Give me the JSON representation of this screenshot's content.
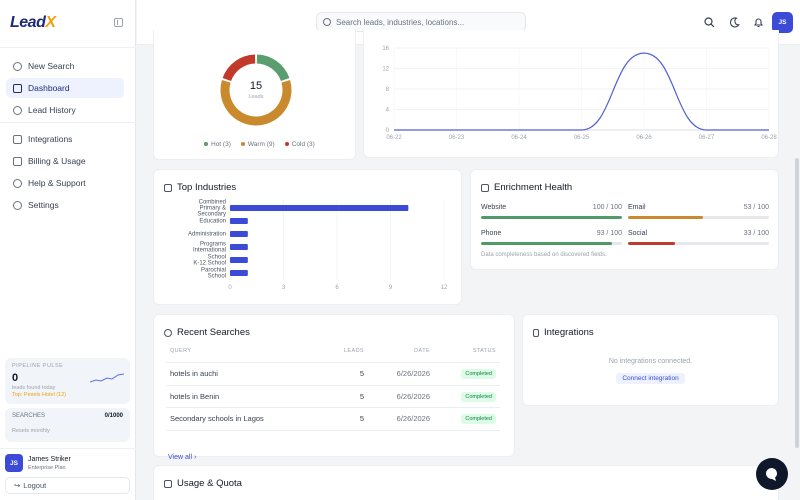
{
  "app": {
    "logo_text": "Lead",
    "logo_x": "X"
  },
  "sidebar": {
    "items": [
      {
        "label": "New Search",
        "icon": "search-icon"
      },
      {
        "label": "Dashboard",
        "icon": "grid-icon",
        "active": true
      },
      {
        "label": "Lead History",
        "icon": "history-icon"
      },
      {
        "label": "Integrations",
        "icon": "link-icon"
      },
      {
        "label": "Billing & Usage",
        "icon": "card-icon"
      },
      {
        "label": "Help & Support",
        "icon": "help-icon"
      },
      {
        "label": "Settings",
        "icon": "gear-icon"
      }
    ],
    "pulse": {
      "title": "PIPELINE PULSE",
      "value": "0",
      "sub": "leads found today",
      "top": "Top: Pexels Hotel (12)"
    },
    "searches": {
      "label": "SEARCHES",
      "value": "0/1000",
      "sub": "Resets monthly"
    },
    "user": {
      "initials": "JS",
      "name": "James Striker",
      "plan": "Enterprise Plan"
    },
    "logout_label": "Logout"
  },
  "header": {
    "search_placeholder": "Search leads, industries, locations...",
    "avatar_initials": "JS"
  },
  "donut": {
    "center_value": "15",
    "center_label": "Leads",
    "segments": [
      {
        "label": "Hot",
        "count": 3,
        "legend": "Hot (3)",
        "color": "#5a9e6f"
      },
      {
        "label": "Warm",
        "count": 9,
        "legend": "Warm (9)",
        "color": "#c98a2e"
      },
      {
        "label": "Cold",
        "count": 3,
        "legend": "Cold (3)",
        "color": "#c0392b"
      }
    ]
  },
  "line_chart": {
    "type": "line",
    "x": [
      "06-22",
      "06-23",
      "06-24",
      "06-25",
      "06-26",
      "06-27",
      "06-28"
    ],
    "y_ticks": [
      "16",
      "12",
      "8",
      "4",
      "0"
    ],
    "ylim": [
      0,
      16
    ],
    "values": [
      0,
      0,
      0,
      0,
      15,
      0,
      0
    ],
    "color": "#4f5fd6"
  },
  "top_industries": {
    "title": "Top Industries",
    "chart_data": {
      "type": "bar",
      "orientation": "horizontal",
      "categories": [
        [
          "Combined",
          "Primary &",
          "Secondary"
        ],
        [
          "Education"
        ],
        [
          "Administration"
        ],
        [
          "Programs",
          "International"
        ],
        [
          "School",
          "K-12 School"
        ],
        [
          "Parochial",
          "School"
        ]
      ],
      "values": [
        10,
        1,
        1,
        1,
        1,
        1
      ],
      "x_ticks": [
        "0",
        "3",
        "6",
        "9",
        "12"
      ],
      "xlim": [
        0,
        12
      ],
      "color": "#3b4bd8"
    }
  },
  "enrichment": {
    "title": "Enrichment Health",
    "rows": [
      {
        "label": "Website",
        "value": "100 / 100",
        "pct": 100,
        "color": "#4e9a68"
      },
      {
        "label": "Email",
        "value": "53 / 100",
        "pct": 53,
        "color": "#c98a2e"
      },
      {
        "label": "Phone",
        "value": "93 / 100",
        "pct": 93,
        "color": "#4e9a68"
      },
      {
        "label": "Social",
        "value": "33 / 100",
        "pct": 33,
        "color": "#c0392b"
      }
    ],
    "note": "Data completeness based on discovered fields."
  },
  "recent": {
    "title": "Recent Searches",
    "headers": [
      "QUERY",
      "LEADS",
      "DATE",
      "STATUS"
    ],
    "rows": [
      {
        "query": "hotels in auchi",
        "leads": "5",
        "date": "6/26/2026",
        "status": "Completed"
      },
      {
        "query": "hotels in Benin",
        "leads": "5",
        "date": "6/26/2026",
        "status": "Completed"
      },
      {
        "query": "Secondary schools in Lagos",
        "leads": "5",
        "date": "6/26/2026",
        "status": "Completed"
      }
    ],
    "view_all": "View all ›"
  },
  "integrations": {
    "title": "Integrations",
    "empty": "No integrations connected.",
    "connect": "Connect integration"
  },
  "usage": {
    "title": "Usage & Quota"
  }
}
